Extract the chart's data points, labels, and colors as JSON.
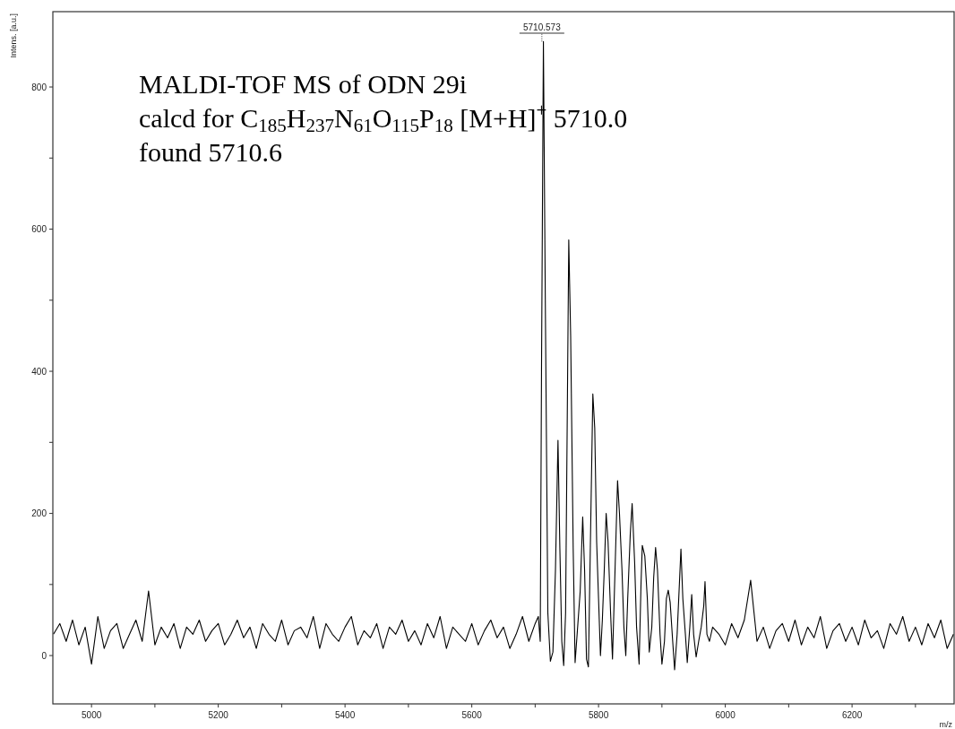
{
  "chart_data": {
    "type": "line",
    "xlabel": "m/z",
    "ylabel": "Intens. [a.u.]",
    "xlim": [
      4939,
      6361
    ],
    "xticks": [
      5000,
      {
        "value": 5100,
        "label": null
      },
      5200,
      {
        "value": 5300,
        "label": null
      },
      5400,
      {
        "value": 5500,
        "label": null
      },
      5600,
      {
        "value": 5700,
        "label": null
      },
      5800,
      {
        "value": 5900,
        "label": null
      },
      6000,
      {
        "value": 6100,
        "label": null
      },
      6200,
      {
        "value": 6300,
        "label": null
      }
    ],
    "ylim": [
      -68,
      906
    ],
    "yticks": [
      0,
      {
        "value": 100,
        "label": null
      },
      200,
      {
        "value": 300,
        "label": null
      },
      400,
      {
        "value": 500,
        "label": null
      },
      600,
      {
        "value": 700,
        "label": null
      },
      800
    ],
    "grid": false,
    "marker": "none",
    "line_style": "solid",
    "annotations": [
      {
        "text": "5710.573",
        "x": 5710.573,
        "y": 864
      },
      "MALDI-TOF MS of ODN 29i",
      "calcd for C$_{185}$H$_{237}$N$_{61}$O$_{115}$P$_{18}$ [M+H]$^{+}$ 5710.0",
      "found 5710.6"
    ],
    "series": [
      {
        "color": "#000000",
        "x": [
          4940,
          4950,
          4960,
          4970,
          4980,
          4990,
          5000,
          5010,
          5020,
          5030,
          5040,
          5050,
          5060,
          5070,
          5080,
          5090,
          5100,
          5110,
          5120,
          5130,
          5140,
          5150,
          5160,
          5170,
          5180,
          5190,
          5200,
          5210,
          5220,
          5230,
          5240,
          5250,
          5260,
          5270,
          5280,
          5290,
          5300,
          5310,
          5320,
          5330,
          5340,
          5350,
          5360,
          5370,
          5380,
          5390,
          5400,
          5410,
          5420,
          5430,
          5440,
          5450,
          5460,
          5470,
          5480,
          5490,
          5500,
          5510,
          5520,
          5530,
          5540,
          5550,
          5560,
          5570,
          5580,
          5590,
          5600,
          5610,
          5620,
          5630,
          5640,
          5650,
          5660,
          5670,
          5680,
          5690,
          5700,
          5705,
          5708,
          5710,
          5713,
          5716,
          5720,
          5724,
          5728,
          5732,
          5736,
          5739,
          5742,
          5745,
          5748,
          5753,
          5756,
          5760,
          5763,
          5767,
          5771,
          5775,
          5778,
          5781,
          5784,
          5787,
          5791,
          5794,
          5797,
          5800,
          5803,
          5806,
          5809,
          5812,
          5815,
          5819,
          5822,
          5826,
          5830,
          5833,
          5837,
          5840,
          5843,
          5846,
          5850,
          5853,
          5857,
          5860,
          5864,
          5867,
          5869,
          5873,
          5877,
          5880,
          5884,
          5887,
          5890,
          5893,
          5897,
          5900,
          5904,
          5907,
          5910,
          5913,
          5917,
          5920,
          5924,
          5928,
          5930,
          5933,
          5937,
          5940,
          5944,
          5947,
          5950,
          5954,
          5958,
          5962,
          5966,
          5968,
          5971,
          5975,
          5980,
          5990,
          6000,
          6010,
          6020,
          6030,
          6040,
          6050,
          6060,
          6070,
          6080,
          6090,
          6100,
          6110,
          6120,
          6130,
          6140,
          6150,
          6160,
          6170,
          6180,
          6190,
          6200,
          6210,
          6220,
          6230,
          6240,
          6250,
          6260,
          6270,
          6280,
          6290,
          6300,
          6310,
          6320,
          6330,
          6340,
          6350,
          6360
        ],
        "values": [
          30,
          45,
          20,
          50,
          15,
          40,
          -12,
          55,
          10,
          35,
          45,
          10,
          30,
          50,
          20,
          91,
          15,
          40,
          25,
          45,
          10,
          40,
          30,
          50,
          20,
          35,
          45,
          15,
          30,
          50,
          25,
          40,
          10,
          45,
          30,
          20,
          50,
          15,
          35,
          40,
          25,
          55,
          10,
          45,
          30,
          20,
          40,
          55,
          15,
          35,
          25,
          45,
          10,
          40,
          30,
          50,
          20,
          35,
          15,
          45,
          25,
          55,
          10,
          40,
          30,
          20,
          45,
          15,
          35,
          50,
          25,
          40,
          10,
          30,
          55,
          20,
          45,
          55,
          20,
          400,
          864,
          500,
          60,
          -8,
          5,
          120,
          303,
          150,
          20,
          -14,
          60,
          585,
          450,
          150,
          -10,
          40,
          90,
          195,
          120,
          -5,
          -16,
          150,
          368,
          320,
          160,
          80,
          0,
          50,
          120,
          200,
          160,
          60,
          -5,
          120,
          246,
          200,
          120,
          40,
          0,
          80,
          170,
          214,
          130,
          40,
          -12,
          100,
          155,
          140,
          80,
          5,
          40,
          110,
          152,
          120,
          30,
          -12,
          20,
          80,
          92,
          75,
          20,
          -20,
          30,
          110,
          150,
          80,
          30,
          -10,
          40,
          86,
          30,
          -2,
          20,
          40,
          70,
          104,
          30,
          20,
          40,
          30,
          15,
          45,
          25,
          50,
          106,
          20,
          40,
          10,
          35,
          45,
          20,
          50,
          15,
          40,
          25,
          55,
          10,
          35,
          45,
          20,
          40,
          15,
          50,
          25,
          35,
          10,
          45,
          30,
          55,
          20,
          40,
          15,
          45,
          25,
          50,
          10,
          30
        ]
      }
    ]
  }
}
